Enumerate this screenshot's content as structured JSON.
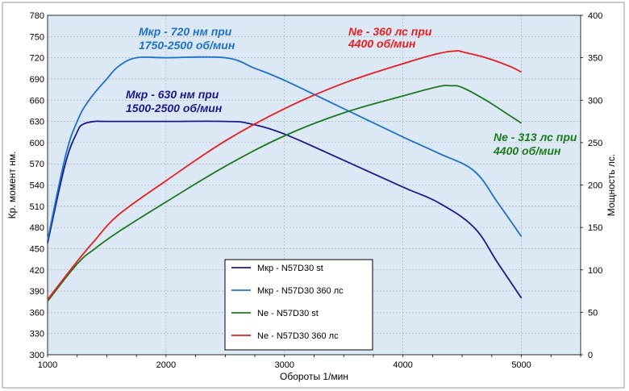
{
  "chart_data": {
    "type": "line",
    "xlabel": "Обороты  1/мин",
    "ylabel_left": "Кр. момент  нм.",
    "ylabel_right": "Мощность  лс.",
    "xlim": [
      1000,
      5500
    ],
    "ylim_left": [
      300,
      780
    ],
    "ylim_right": [
      0,
      400
    ],
    "x_ticks": [
      1000,
      2000,
      3000,
      4000,
      5000
    ],
    "y_left_ticks": [
      300,
      330,
      360,
      390,
      420,
      450,
      480,
      510,
      540,
      570,
      600,
      630,
      660,
      690,
      720,
      750,
      780
    ],
    "y_right_ticks": [
      0,
      50,
      100,
      150,
      200,
      250,
      300,
      350,
      400
    ],
    "grid": true,
    "background": "#dde8f5",
    "series": [
      {
        "name": "Mкр - N57D30  st",
        "axis": "left",
        "color": "#1a1a8c",
        "x": [
          1000,
          1150,
          1250,
          1300,
          1400,
          1500,
          2000,
          2500,
          2700,
          3000,
          3500,
          4000,
          4300,
          4600,
          4800,
          5000
        ],
        "y": [
          458,
          570,
          615,
          626,
          630,
          630,
          630,
          630,
          627,
          612,
          575,
          537,
          515,
          480,
          430,
          380
        ]
      },
      {
        "name": "Mкр - N57D30  360 лс",
        "axis": "left",
        "color": "#1e73c8",
        "x": [
          1000,
          1150,
          1250,
          1350,
          1500,
          1600,
          1750,
          2000,
          2500,
          2750,
          3000,
          3500,
          4000,
          4300,
          4600,
          4800,
          5000
        ],
        "y": [
          462,
          580,
          630,
          660,
          690,
          708,
          720,
          720,
          720,
          705,
          688,
          648,
          608,
          585,
          560,
          515,
          467
        ]
      },
      {
        "name": "Ne  -  N57D30 st",
        "axis": "right",
        "color": "#1e7a1e",
        "x": [
          1000,
          1250,
          1400,
          1600,
          2000,
          2500,
          3000,
          3500,
          4000,
          4300,
          4400,
          4500,
          4700,
          4900,
          5000
        ],
        "y": [
          63,
          107,
          125,
          145,
          180,
          222,
          258,
          285,
          305,
          316,
          317,
          315,
          300,
          282,
          273
        ]
      },
      {
        "name": "Ne  -  N57D30  360 лс",
        "axis": "right",
        "color": "#e61e1e",
        "x": [
          1000,
          1250,
          1400,
          1600,
          2000,
          2500,
          3000,
          3500,
          4000,
          4300,
          4450,
          4500,
          4700,
          4900,
          5000
        ],
        "y": [
          65,
          110,
          135,
          165,
          205,
          252,
          290,
          320,
          343,
          355,
          358,
          357,
          350,
          340,
          333
        ]
      }
    ],
    "annotations": [
      {
        "line1": "Mкр - 720 нм при",
        "line2": "1750-2500 об/мин",
        "color": "#1e73c8"
      },
      {
        "line1": "Mкр - 630 нм при",
        "line2": "1500-2500 об/мин",
        "color": "#1a1a8c"
      },
      {
        "line1": "Ne - 360 лс при",
        "line2": "4400 об/мин",
        "color": "#e61e1e"
      },
      {
        "line1": "Ne - 313 лс при",
        "line2": "4400 об/мин",
        "color": "#1e7a1e"
      }
    ]
  }
}
